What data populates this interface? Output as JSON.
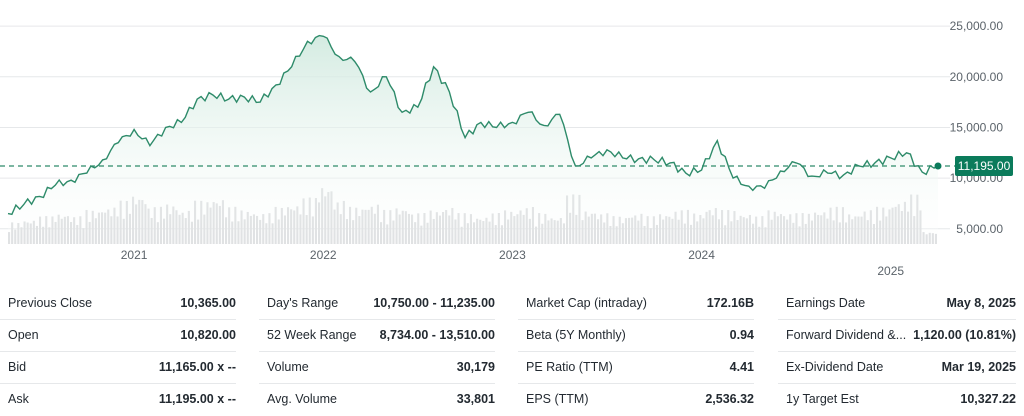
{
  "chart_data": {
    "type": "area",
    "x_range": [
      "2020-05",
      "2025-04"
    ],
    "ylim": [
      3500,
      26000
    ],
    "y_ticks": [
      "25,000.00",
      "20,000.00",
      "15,000.00",
      "10,000.00",
      "5,000.00"
    ],
    "y_tick_values": [
      25000,
      20000,
      15000,
      10000,
      5000
    ],
    "x_ticks": [
      {
        "label": "2021",
        "x": "2021-01"
      },
      {
        "label": "2022",
        "x": "2022-01"
      },
      {
        "label": "2023",
        "x": "2023-01"
      },
      {
        "label": "2024",
        "x": "2024-01"
      },
      {
        "label": "2025",
        "x": "2025-01"
      }
    ],
    "current_price": 11195,
    "current_price_label": "11,195.00",
    "series": [
      {
        "x": [
          "2020-05",
          "2020-06",
          "2020-07",
          "2020-08",
          "2020-09",
          "2020-10",
          "2020-11",
          "2020-12",
          "2021-01",
          "2021-02",
          "2021-03",
          "2021-04",
          "2021-05",
          "2021-06",
          "2021-07",
          "2021-08",
          "2021-09",
          "2021-10",
          "2021-11",
          "2021-12",
          "2022-01",
          "2022-02",
          "2022-03",
          "2022-04",
          "2022-05",
          "2022-06",
          "2022-07",
          "2022-08",
          "2022-09",
          "2022-10",
          "2022-11",
          "2022-12",
          "2023-01",
          "2023-02",
          "2023-03",
          "2023-04",
          "2023-05",
          "2023-06",
          "2023-07",
          "2023-08",
          "2023-09",
          "2023-10",
          "2023-11",
          "2023-12",
          "2024-01",
          "2024-02",
          "2024-03",
          "2024-04",
          "2024-05",
          "2024-06",
          "2024-07",
          "2024-08",
          "2024-09",
          "2024-10",
          "2024-11",
          "2024-12",
          "2025-01",
          "2025-02",
          "2025-03",
          "2025-04"
        ],
        "y": [
          6500,
          7400,
          8200,
          9300,
          9800,
          10500,
          11800,
          13500,
          14800,
          13200,
          15000,
          15500,
          17800,
          18200,
          17800,
          18000,
          17500,
          19200,
          21000,
          23500,
          24000,
          22000,
          21500,
          18500,
          20000,
          16500,
          17000,
          21000,
          18500,
          14000,
          15500,
          15000,
          15500,
          16500,
          15200,
          16300,
          11200,
          12000,
          12800,
          12000,
          11900,
          11800,
          11500,
          10500,
          10800,
          13700,
          10000,
          9200,
          9000,
          10700,
          11500,
          10200,
          10500,
          10300,
          11200,
          11500,
          12000,
          12500,
          10600,
          11195
        ]
      }
    ],
    "volume": [
      0.35,
      0.4,
      0.45,
      0.5,
      0.45,
      0.55,
      0.6,
      0.7,
      0.8,
      0.6,
      0.65,
      0.55,
      0.7,
      0.75,
      0.6,
      0.55,
      0.5,
      0.6,
      0.65,
      0.75,
      0.95,
      0.7,
      0.6,
      0.65,
      0.55,
      0.6,
      0.5,
      0.55,
      0.6,
      0.5,
      0.45,
      0.5,
      0.55,
      0.6,
      0.5,
      0.45,
      0.8,
      0.55,
      0.5,
      0.45,
      0.5,
      0.45,
      0.5,
      0.55,
      0.5,
      0.6,
      0.55,
      0.5,
      0.45,
      0.55,
      0.5,
      0.5,
      0.55,
      0.6,
      0.5,
      0.55,
      0.6,
      0.7,
      0.8,
      0.2
    ]
  },
  "stats": {
    "columns": [
      [
        {
          "label": "Previous Close",
          "value": "10,365.00"
        },
        {
          "label": "Open",
          "value": "10,820.00"
        },
        {
          "label": "Bid",
          "value": "11,165.00 x --"
        },
        {
          "label": "Ask",
          "value": "11,195.00 x --"
        }
      ],
      [
        {
          "label": "Day's Range",
          "value": "10,750.00 - 11,235.00"
        },
        {
          "label": "52 Week Range",
          "value": "8,734.00 - 13,510.00"
        },
        {
          "label": "Volume",
          "value": "30,179"
        },
        {
          "label": "Avg. Volume",
          "value": "33,801"
        }
      ],
      [
        {
          "label": "Market Cap (intraday)",
          "value": "172.16B"
        },
        {
          "label": "Beta (5Y Monthly)",
          "value": "0.94"
        },
        {
          "label": "PE Ratio (TTM)",
          "value": "4.41"
        },
        {
          "label": "EPS (TTM)",
          "value": "2,536.32"
        }
      ],
      [
        {
          "label": "Earnings Date",
          "value": "May 8, 2025"
        },
        {
          "label": "Forward Dividend &...",
          "value": "1,120.00 (10.81%)"
        },
        {
          "label": "Ex-Dividend Date",
          "value": "Mar 19, 2025"
        },
        {
          "label": "1y Target Est",
          "value": "10,327.22"
        }
      ]
    ]
  },
  "colors": {
    "line": "#2e8b6a",
    "area_top": "#cfe9de",
    "area_bottom": "#ffffff",
    "volume": "#d8dadc",
    "dashed": "#2e8b6a",
    "badge": "#0b7b5b"
  }
}
